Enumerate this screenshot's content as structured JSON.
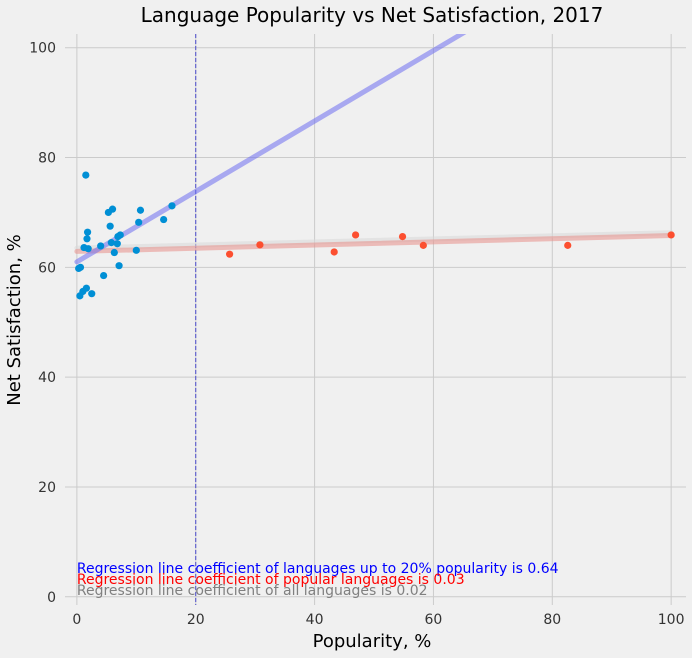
{
  "chart_data": {
    "type": "scatter",
    "title": "Language Popularity vs Net Satisfaction, 2017",
    "xlabel": "Popularity, %",
    "ylabel": "Net Satisfaction, %",
    "xlim": [
      -2,
      102.5
    ],
    "ylim": [
      -1.5,
      102.5
    ],
    "x_ticks": [
      0,
      20,
      40,
      60,
      80,
      100
    ],
    "y_ticks": [
      0,
      20,
      40,
      60,
      80,
      100
    ],
    "grid": true,
    "vline_x": 20,
    "series": [
      {
        "color": "#008fd5",
        "points": [
          [
            0.3,
            59.8
          ],
          [
            0.5,
            54.8
          ],
          [
            0.6,
            60.0
          ],
          [
            1.0,
            55.6
          ],
          [
            1.2,
            63.6
          ],
          [
            1.6,
            56.2
          ],
          [
            1.5,
            76.8
          ],
          [
            1.7,
            65.2
          ],
          [
            1.8,
            66.4
          ],
          [
            1.9,
            63.4
          ],
          [
            2.5,
            55.2
          ],
          [
            4.0,
            63.9
          ],
          [
            4.5,
            58.5
          ],
          [
            5.3,
            70.0
          ],
          [
            5.6,
            67.5
          ],
          [
            5.8,
            64.5
          ],
          [
            6.0,
            70.6
          ],
          [
            6.3,
            62.7
          ],
          [
            6.8,
            64.3
          ],
          [
            6.9,
            65.6
          ],
          [
            7.1,
            60.3
          ],
          [
            7.3,
            65.9
          ],
          [
            10.0,
            63.1
          ],
          [
            10.4,
            68.2
          ],
          [
            10.7,
            70.4
          ],
          [
            14.6,
            68.7
          ],
          [
            16.0,
            71.2
          ]
        ]
      },
      {
        "color": "#fc4f30",
        "points": [
          [
            25.7,
            62.4
          ],
          [
            30.8,
            64.1
          ],
          [
            43.3,
            62.8
          ],
          [
            46.9,
            65.9
          ],
          [
            54.8,
            65.6
          ],
          [
            58.3,
            64.0
          ],
          [
            82.6,
            64.0
          ],
          [
            100.0,
            65.9
          ]
        ]
      }
    ],
    "regression_lines": [
      {
        "color": "#6d6df0",
        "x": [
          0,
          65.5
        ],
        "y": [
          61.0,
          103.0
        ]
      },
      {
        "color": "#e8908a",
        "x": [
          0,
          100
        ],
        "y": [
          62.9,
          65.8
        ]
      },
      {
        "color": "#d8d8d8",
        "x": [
          0,
          100
        ],
        "y": [
          63.5,
          66.3
        ]
      }
    ],
    "annotations": [
      {
        "text": "Regression line coefficient of languages up to 20% popularity is 0.64",
        "color": "#0000ff"
      },
      {
        "text": "Regression line coefficient of popular languages is 0.03",
        "color": "#ff0000"
      },
      {
        "text": "Regression line coefficient of all languages is 0.02",
        "color": "#808080"
      }
    ]
  }
}
